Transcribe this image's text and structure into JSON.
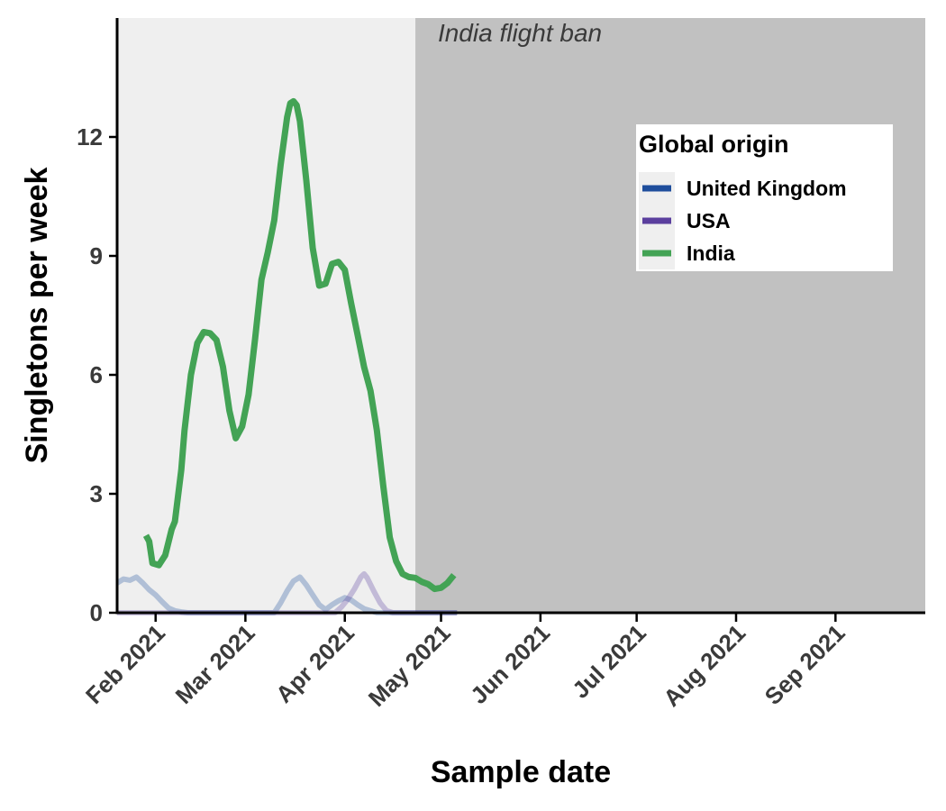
{
  "chart_data": {
    "type": "line",
    "xlabel": "Sample date",
    "ylabel": "Singletons per week",
    "xlim": [
      "2021-01-20",
      "2021-09-29"
    ],
    "ylim": [
      0,
      15
    ],
    "yticks": [
      0,
      3,
      6,
      9,
      12
    ],
    "xticks": [
      {
        "date": "2021-02-01",
        "label": "Feb 2021"
      },
      {
        "date": "2021-03-01",
        "label": "Mar 2021"
      },
      {
        "date": "2021-04-01",
        "label": "Apr 2021"
      },
      {
        "date": "2021-05-01",
        "label": "May 2021"
      },
      {
        "date": "2021-06-01",
        "label": "Jun 2021"
      },
      {
        "date": "2021-07-01",
        "label": "Jul 2021"
      },
      {
        "date": "2021-08-01",
        "label": "Aug 2021"
      },
      {
        "date": "2021-09-01",
        "label": "Sep 2021"
      }
    ],
    "grid": false,
    "legend": {
      "title": "Global origin",
      "placement": "top-right",
      "entries": [
        {
          "name": "United Kingdom",
          "color": "#1f4e9c"
        },
        {
          "name": "USA",
          "color": "#5b3f9e"
        },
        {
          "name": "India",
          "color": "#43a355"
        }
      ]
    },
    "annotation": {
      "text": "India flight ban",
      "ban_date": "2021-04-23",
      "before_color": "#efefef",
      "after_color": "#c1c1c1"
    },
    "series": [
      {
        "name": "United Kingdom",
        "color": "#1f4e9c",
        "faded": true,
        "points": [
          [
            "2021-01-20",
            0.75
          ],
          [
            "2021-01-22",
            0.85
          ],
          [
            "2021-01-24",
            0.82
          ],
          [
            "2021-01-26",
            0.9
          ],
          [
            "2021-01-28",
            0.75
          ],
          [
            "2021-01-30",
            0.58
          ],
          [
            "2021-02-01",
            0.45
          ],
          [
            "2021-02-03",
            0.28
          ],
          [
            "2021-02-05",
            0.12
          ],
          [
            "2021-02-07",
            0.05
          ],
          [
            "2021-02-09",
            0.02
          ],
          [
            "2021-02-11",
            0.0
          ],
          [
            "2021-03-10",
            0.0
          ],
          [
            "2021-03-12",
            0.25
          ],
          [
            "2021-03-14",
            0.55
          ],
          [
            "2021-03-16",
            0.8
          ],
          [
            "2021-03-18",
            0.9
          ],
          [
            "2021-03-20",
            0.7
          ],
          [
            "2021-03-22",
            0.45
          ],
          [
            "2021-03-24",
            0.2
          ],
          [
            "2021-03-26",
            0.08
          ],
          [
            "2021-03-28",
            0.2
          ],
          [
            "2021-03-30",
            0.3
          ],
          [
            "2021-04-01",
            0.38
          ],
          [
            "2021-04-03",
            0.32
          ],
          [
            "2021-04-05",
            0.2
          ],
          [
            "2021-04-07",
            0.1
          ],
          [
            "2021-04-09",
            0.05
          ],
          [
            "2021-04-11",
            0.0
          ],
          [
            "2021-05-06",
            0.0
          ]
        ]
      },
      {
        "name": "USA",
        "color": "#5b3f9e",
        "faded": true,
        "points": [
          [
            "2021-01-20",
            0.0
          ],
          [
            "2021-03-29",
            0.0
          ],
          [
            "2021-03-31",
            0.15
          ],
          [
            "2021-04-02",
            0.35
          ],
          [
            "2021-04-04",
            0.6
          ],
          [
            "2021-04-06",
            0.9
          ],
          [
            "2021-04-07",
            0.98
          ],
          [
            "2021-04-08",
            0.88
          ],
          [
            "2021-04-10",
            0.55
          ],
          [
            "2021-04-12",
            0.25
          ],
          [
            "2021-04-14",
            0.05
          ],
          [
            "2021-04-16",
            0.0
          ],
          [
            "2021-05-06",
            0.0
          ]
        ]
      },
      {
        "name": "India",
        "color": "#43a355",
        "faded": false,
        "points": [
          [
            "2021-01-29",
            1.95
          ],
          [
            "2021-01-30",
            1.8
          ],
          [
            "2021-01-31",
            1.25
          ],
          [
            "2021-02-02",
            1.2
          ],
          [
            "2021-02-04",
            1.45
          ],
          [
            "2021-02-06",
            2.1
          ],
          [
            "2021-02-07",
            2.3
          ],
          [
            "2021-02-09",
            3.6
          ],
          [
            "2021-02-10",
            4.6
          ],
          [
            "2021-02-12",
            6.0
          ],
          [
            "2021-02-14",
            6.8
          ],
          [
            "2021-02-16",
            7.08
          ],
          [
            "2021-02-18",
            7.05
          ],
          [
            "2021-02-20",
            6.88
          ],
          [
            "2021-02-22",
            6.2
          ],
          [
            "2021-02-24",
            5.1
          ],
          [
            "2021-02-26",
            4.4
          ],
          [
            "2021-02-28",
            4.7
          ],
          [
            "2021-03-02",
            5.5
          ],
          [
            "2021-03-04",
            6.9
          ],
          [
            "2021-03-06",
            8.4
          ],
          [
            "2021-03-08",
            9.1
          ],
          [
            "2021-03-10",
            9.9
          ],
          [
            "2021-03-12",
            11.3
          ],
          [
            "2021-03-14",
            12.5
          ],
          [
            "2021-03-15",
            12.85
          ],
          [
            "2021-03-16",
            12.9
          ],
          [
            "2021-03-17",
            12.8
          ],
          [
            "2021-03-18",
            12.4
          ],
          [
            "2021-03-20",
            10.9
          ],
          [
            "2021-03-22",
            9.2
          ],
          [
            "2021-03-24",
            8.25
          ],
          [
            "2021-03-26",
            8.3
          ],
          [
            "2021-03-28",
            8.8
          ],
          [
            "2021-03-30",
            8.85
          ],
          [
            "2021-04-01",
            8.65
          ],
          [
            "2021-04-03",
            7.8
          ],
          [
            "2021-04-05",
            7.0
          ],
          [
            "2021-04-07",
            6.2
          ],
          [
            "2021-04-09",
            5.6
          ],
          [
            "2021-04-11",
            4.6
          ],
          [
            "2021-04-13",
            3.2
          ],
          [
            "2021-04-15",
            1.9
          ],
          [
            "2021-04-17",
            1.3
          ],
          [
            "2021-04-19",
            0.98
          ],
          [
            "2021-04-21",
            0.9
          ],
          [
            "2021-04-23",
            0.88
          ],
          [
            "2021-04-25",
            0.78
          ],
          [
            "2021-04-27",
            0.72
          ],
          [
            "2021-04-29",
            0.6
          ],
          [
            "2021-05-01",
            0.63
          ],
          [
            "2021-05-03",
            0.75
          ],
          [
            "2021-05-05",
            0.95
          ]
        ]
      }
    ]
  }
}
